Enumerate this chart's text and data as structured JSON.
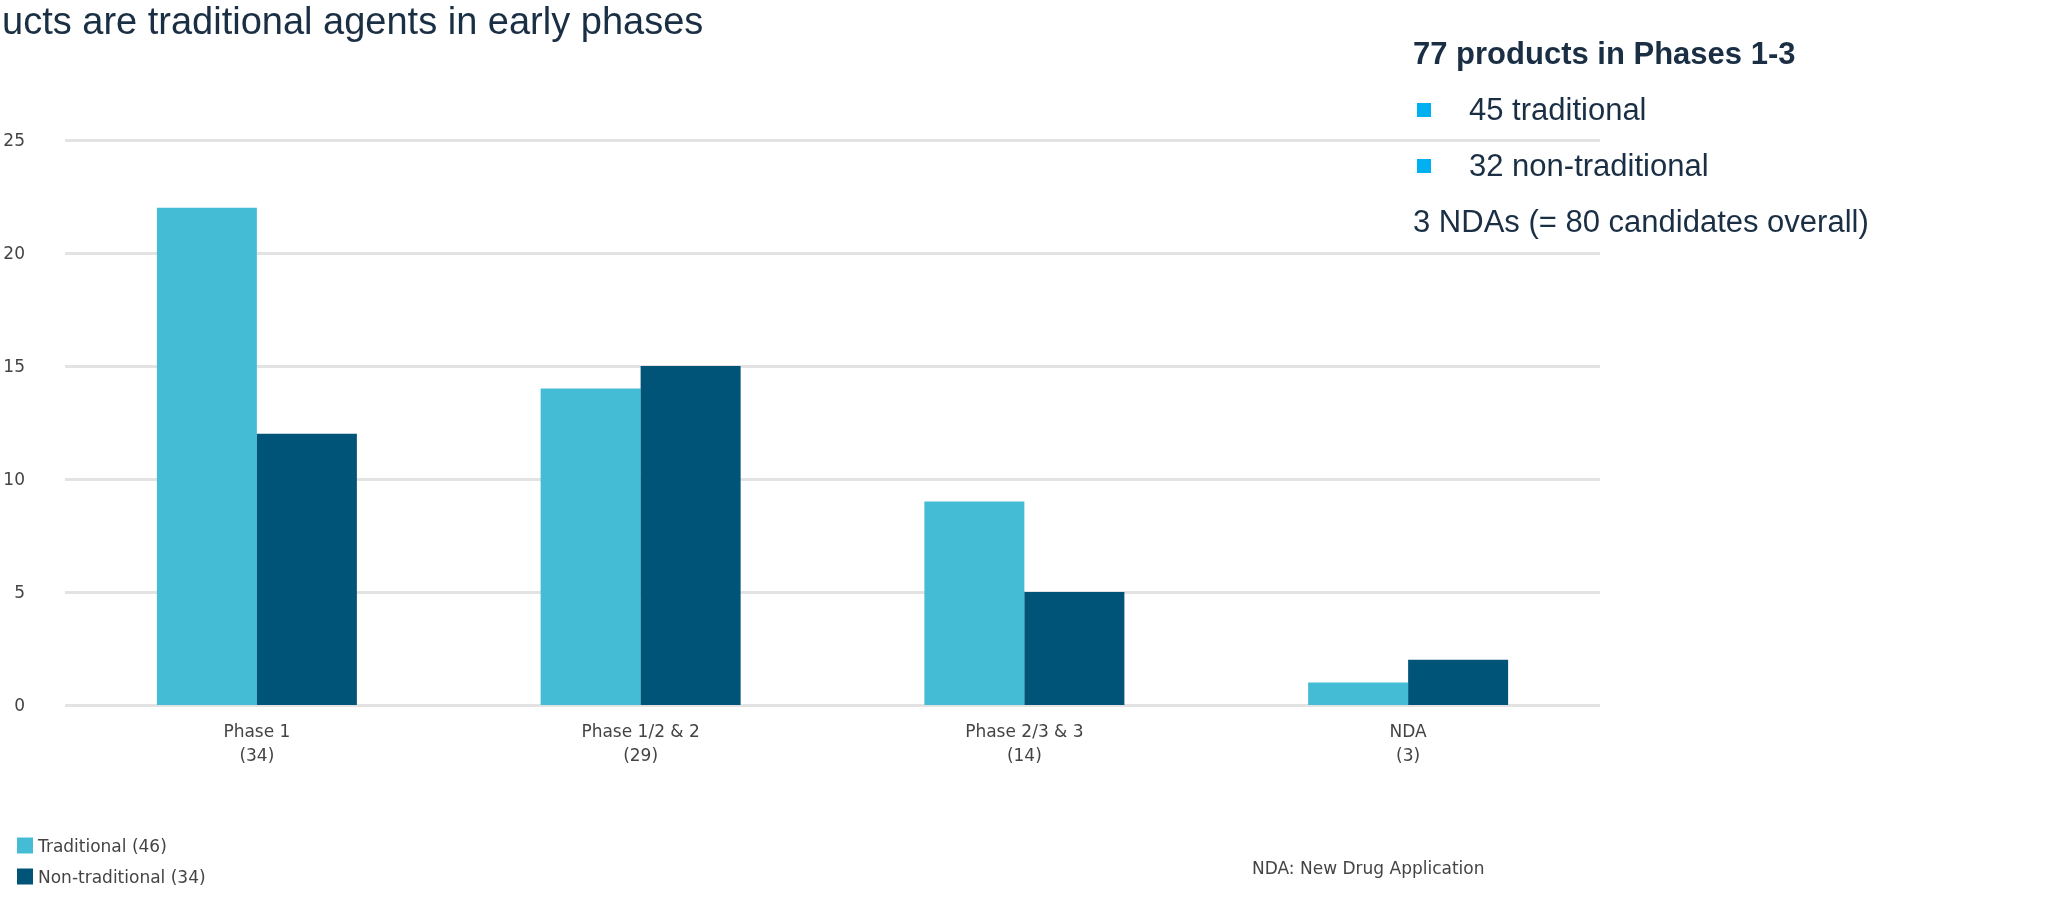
{
  "chart_data": {
    "type": "bar",
    "title": "ucts are traditional agents in early phases",
    "categories": [
      "Phase 1\n(34)",
      "Phase 1/2 & 2\n(29)",
      "Phase 2/3 & 3\n(14)",
      "NDA\n(3)"
    ],
    "series": [
      {
        "name": "Traditional (46)",
        "color": "#45bcd6",
        "values": [
          22,
          14,
          9,
          1
        ]
      },
      {
        "name": "Non-traditional (34)",
        "color": "#005478",
        "values": [
          12,
          15,
          5,
          2
        ]
      }
    ],
    "ylim": [
      0,
      25
    ],
    "yticks": [
      0,
      5,
      10,
      15,
      20,
      25
    ],
    "grid": "y",
    "legend": "bottom left",
    "annotations": [
      "77 products in Phases 1-3",
      "45 traditional",
      "32 non-traditional",
      "3 NDAs (= 80 candidates overall)",
      "NDA: New Drug Application"
    ]
  }
}
